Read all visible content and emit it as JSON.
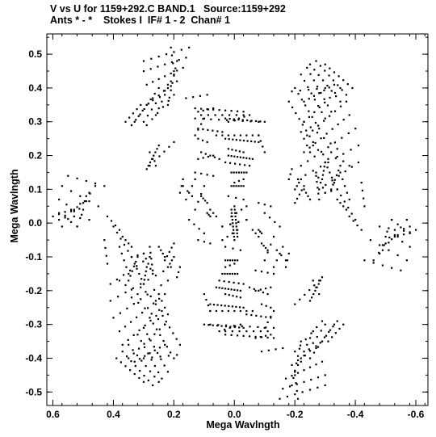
{
  "chart_data": {
    "type": "scatter",
    "title": "V vs U for 1159+292.C BAND.1   Source:1159+292",
    "subtitle": "Ants * - *    Stokes I  IF# 1 - 2  Chan# 1",
    "xlabel": "Mega Wavlngth",
    "ylabel": "Mega Wavlngth",
    "xlim": [
      0.62,
      -0.64
    ],
    "ylim": [
      -0.54,
      0.56
    ],
    "x_ticks": [
      0.6,
      0.4,
      0.2,
      0.0,
      -0.2,
      -0.4,
      -0.6
    ],
    "x_tick_labels": [
      "0.6",
      "0.4",
      "0.2",
      "0.0",
      "-0.2",
      "-0.4",
      "-0.6"
    ],
    "y_ticks": [
      0.5,
      0.4,
      0.3,
      0.2,
      0.1,
      0.0,
      -0.1,
      -0.2,
      -0.3,
      -0.4,
      -0.5
    ],
    "y_tick_labels": [
      "0.5",
      "0.4",
      "0.3",
      "0.2",
      "0.1",
      "0.0",
      "-0.1",
      "-0.2",
      "-0.3",
      "-0.4",
      "-0.5"
    ],
    "grid": false,
    "point_color": "#000000",
    "tracks": [
      {
        "u0": 0.29,
        "v0": 0.16,
        "u1": 0.25,
        "v1": 0.23,
        "n": 8
      },
      {
        "u0": 0.03,
        "v0": 0.31,
        "u1": -0.1,
        "v1": 0.3,
        "n": 10
      },
      {
        "u0": 0.03,
        "v0": 0.25,
        "u1": -0.08,
        "v1": 0.24,
        "n": 10
      },
      {
        "u0": 0.02,
        "v0": 0.2,
        "u1": -0.06,
        "v1": 0.19,
        "n": 9
      },
      {
        "u0": 0.01,
        "v0": 0.15,
        "u1": -0.04,
        "v1": 0.15,
        "n": 7
      },
      {
        "u0": 0.01,
        "v0": 0.11,
        "u1": -0.03,
        "v1": 0.11,
        "n": 6
      },
      {
        "u0": 0.15,
        "v0": 0.52,
        "u1": 0.3,
        "v1": 0.48,
        "n": 7
      },
      {
        "u0": 0.16,
        "v0": 0.49,
        "u1": 0.3,
        "v1": 0.45,
        "n": 7
      },
      {
        "u0": 0.17,
        "v0": 0.46,
        "u1": 0.29,
        "v1": 0.41,
        "n": 7
      },
      {
        "u0": 0.19,
        "v0": 0.42,
        "u1": 0.29,
        "v1": 0.35,
        "n": 6
      },
      {
        "u0": 0.2,
        "v0": 0.38,
        "u1": 0.29,
        "v1": 0.29,
        "n": 6
      },
      {
        "u0": 0.55,
        "v0": 0.14,
        "u1": 0.43,
        "v1": 0.11,
        "n": 5
      },
      {
        "u0": 0.57,
        "v0": 0.11,
        "u1": 0.45,
        "v1": 0.05,
        "n": 5
      },
      {
        "u0": 0.58,
        "v0": 0.07,
        "u1": 0.48,
        "v1": 0.01,
        "n": 5
      },
      {
        "u0": 0.58,
        "v0": 0.03,
        "u1": 0.52,
        "v1": -0.01,
        "n": 4
      },
      {
        "u0": 0.13,
        "v0": 0.34,
        "u1": -0.03,
        "v1": 0.33,
        "n": 9
      },
      {
        "u0": 0.12,
        "v0": 0.28,
        "u1": 0.04,
        "v1": 0.27,
        "n": 6
      },
      {
        "u0": 0.11,
        "v0": 0.21,
        "u1": 0.05,
        "v1": 0.19,
        "n": 5
      },
      {
        "u0": 0.16,
        "v0": 0.07,
        "u1": 0.13,
        "v1": 0.13,
        "n": 4
      },
      {
        "u0": 0.11,
        "v0": 0.08,
        "u1": 0.09,
        "v1": 0.06,
        "n": 4
      },
      {
        "u0": -0.3,
        "v0": 0.4,
        "u1": -0.19,
        "v1": 0.39,
        "n": 5
      },
      {
        "u0": -0.33,
        "v0": 0.41,
        "u1": -0.23,
        "v1": 0.36,
        "n": 7
      },
      {
        "u0": -0.35,
        "v0": 0.4,
        "u1": -0.23,
        "v1": 0.3,
        "n": 8
      },
      {
        "u0": -0.37,
        "v0": 0.36,
        "u1": -0.24,
        "v1": 0.26,
        "n": 8
      },
      {
        "u0": -0.38,
        "v0": 0.32,
        "u1": -0.23,
        "v1": 0.21,
        "n": 9
      },
      {
        "u0": -0.4,
        "v0": 0.28,
        "u1": -0.22,
        "v1": 0.17,
        "n": 9
      },
      {
        "u0": -0.41,
        "v0": 0.23,
        "u1": -0.21,
        "v1": 0.13,
        "n": 9
      },
      {
        "u0": -0.41,
        "v0": 0.18,
        "u1": -0.28,
        "v1": 0.1,
        "n": 7
      },
      {
        "u0": -0.38,
        "v0": 0.07,
        "u1": -0.35,
        "v1": 0.15,
        "n": 5
      },
      {
        "u0": -0.43,
        "v0": 0.05,
        "u1": -0.42,
        "v1": 0.12,
        "n": 4
      },
      {
        "u0": -0.32,
        "v0": 0.1,
        "u1": -0.35,
        "v1": 0.17,
        "n": 6
      },
      {
        "u0": -0.29,
        "v0": 0.13,
        "u1": -0.3,
        "v1": 0.18,
        "n": 5
      },
      {
        "u0": -0.2,
        "v0": 0.1,
        "u1": -0.22,
        "v1": 0.13,
        "n": 4
      },
      {
        "u0": -0.18,
        "v0": 0.13,
        "u1": -0.19,
        "v1": 0.16,
        "n": 3
      },
      {
        "u0": -0.3,
        "v0": 0.09,
        "u1": -0.34,
        "v1": 0.1,
        "n": 3
      },
      {
        "u0": 0.17,
        "v0": 0.11,
        "u1": 0.14,
        "v1": 0.08,
        "n": 3
      },
      {
        "u0": 0.26,
        "v0": 0.17,
        "u1": 0.28,
        "v1": 0.21,
        "n": 3
      },
      {
        "u0": -0.1,
        "v0": -0.11,
        "u1": -0.13,
        "v1": -0.04,
        "n": 4
      },
      {
        "u0": -0.18,
        "v0": -0.09,
        "u1": -0.17,
        "v1": -0.13,
        "n": 3
      },
      {
        "u0": -0.02,
        "v0": -0.08,
        "u1": 0.03,
        "v1": -0.07,
        "n": 3
      },
      {
        "u0": 0.2,
        "v0": -0.06,
        "u1": 0.23,
        "v1": -0.11,
        "n": 5
      },
      {
        "u0": 0.25,
        "v0": -0.07,
        "u1": 0.23,
        "v1": -0.1,
        "n": 4
      },
      {
        "u0": 0.28,
        "v0": -0.07,
        "u1": 0.27,
        "v1": -0.14,
        "n": 5
      },
      {
        "u0": 0.3,
        "v0": -0.09,
        "u1": 0.27,
        "v1": -0.15,
        "n": 5
      },
      {
        "u0": 0.33,
        "v0": -0.12,
        "u1": 0.3,
        "v1": -0.18,
        "n": 5
      },
      {
        "u0": 0.25,
        "v0": -0.21,
        "u1": 0.22,
        "v1": -0.27,
        "n": 4
      },
      {
        "u0": 0.31,
        "v0": -0.19,
        "u1": 0.26,
        "v1": -0.23,
        "n": 4
      },
      {
        "u0": 0.38,
        "v0": -0.17,
        "u1": 0.32,
        "v1": -0.21,
        "n": 4
      },
      {
        "u0": 0.37,
        "v0": -0.04,
        "u1": 0.34,
        "v1": -0.07,
        "n": 4
      },
      {
        "u0": 0.4,
        "v0": -0.01,
        "u1": 0.34,
        "v1": -0.1,
        "n": 6
      },
      {
        "u0": 0.42,
        "v0": 0.02,
        "u1": 0.38,
        "v1": -0.02,
        "n": 4
      },
      {
        "u0": 0.26,
        "v0": -0.24,
        "u1": 0.18,
        "v1": -0.36,
        "n": 8
      },
      {
        "u0": 0.28,
        "v0": -0.28,
        "u1": 0.2,
        "v1": -0.4,
        "n": 8
      },
      {
        "u0": 0.3,
        "v0": -0.31,
        "u1": 0.22,
        "v1": -0.44,
        "n": 8
      },
      {
        "u0": 0.32,
        "v0": -0.33,
        "u1": 0.24,
        "v1": -0.46,
        "n": 8
      },
      {
        "u0": 0.35,
        "v0": -0.36,
        "u1": 0.25,
        "v1": -0.47,
        "n": 8
      },
      {
        "u0": 0.37,
        "v0": -0.38,
        "u1": 0.27,
        "v1": -0.48,
        "n": 8
      },
      {
        "u0": 0.39,
        "v0": -0.4,
        "u1": 0.3,
        "v1": -0.47,
        "n": 7
      },
      {
        "u0": 0.34,
        "v0": -0.22,
        "u1": 0.23,
        "v1": -0.3,
        "n": 6
      },
      {
        "u0": 0.03,
        "v0": -0.21,
        "u1": -0.02,
        "v1": -0.22,
        "n": 5
      },
      {
        "u0": 0.05,
        "v0": -0.17,
        "u1": -0.03,
        "v1": -0.18,
        "n": 6
      },
      {
        "u0": 0.0,
        "v0": -0.12,
        "u1": 0.03,
        "v1": -0.13,
        "n": 3
      },
      {
        "u0": 0.04,
        "v0": -0.05,
        "u1": -0.01,
        "v1": -0.02,
        "n": 4
      },
      {
        "u0": -0.07,
        "v0": -0.2,
        "u1": -0.12,
        "v1": -0.19,
        "n": 4
      },
      {
        "u0": -0.07,
        "v0": -0.14,
        "u1": -0.13,
        "v1": -0.15,
        "n": 4
      },
      {
        "u0": -0.09,
        "v0": -0.24,
        "u1": -0.12,
        "v1": -0.25,
        "n": 3
      },
      {
        "u0": 0.1,
        "v0": -0.21,
        "u1": 0.08,
        "v1": -0.26,
        "n": 4
      },
      {
        "u0": 0.12,
        "v0": -0.05,
        "u1": 0.08,
        "v1": -0.06,
        "n": 3
      },
      {
        "u0": 0.15,
        "v0": 0.01,
        "u1": 0.1,
        "v1": -0.03,
        "n": 4
      },
      {
        "u0": -0.2,
        "v0": -0.24,
        "u1": -0.28,
        "v1": -0.17,
        "n": 6
      },
      {
        "u0": 0.08,
        "v0": -0.26,
        "u1": -0.06,
        "v1": -0.26,
        "n": 8
      },
      {
        "u0": 0.05,
        "v0": -0.32,
        "u1": -0.02,
        "v1": -0.3,
        "n": 5
      },
      {
        "u0": -0.1,
        "v0": -0.31,
        "u1": -0.13,
        "v1": -0.26,
        "n": 4
      },
      {
        "u0": 0.08,
        "v0": -0.3,
        "u1": -0.13,
        "v1": -0.31,
        "n": 9
      },
      {
        "u0": 0.03,
        "v0": -0.32,
        "u1": -0.11,
        "v1": -0.32,
        "n": 7
      },
      {
        "u0": -0.07,
        "v0": -0.34,
        "u1": -0.12,
        "v1": -0.33,
        "n": 4
      },
      {
        "u0": -0.09,
        "v0": -0.38,
        "u1": -0.16,
        "v1": -0.37,
        "n": 4
      },
      {
        "u0": -0.21,
        "v0": -0.52,
        "u1": -0.2,
        "v1": -0.45,
        "n": 4
      },
      {
        "u0": -0.19,
        "v0": -0.48,
        "u1": -0.22,
        "v1": -0.35,
        "n": 7
      },
      {
        "u0": -0.2,
        "v0": -0.44,
        "u1": -0.26,
        "v1": -0.32,
        "n": 7
      },
      {
        "u0": -0.22,
        "v0": -0.41,
        "u1": -0.3,
        "v1": -0.3,
        "n": 7
      },
      {
        "u0": -0.25,
        "v0": -0.4,
        "u1": -0.33,
        "v1": -0.3,
        "n": 7
      },
      {
        "u0": -0.27,
        "v0": -0.37,
        "u1": -0.34,
        "v1": -0.29,
        "n": 6
      },
      {
        "u0": -0.31,
        "v0": -0.35,
        "u1": -0.36,
        "v1": -0.3,
        "n": 5
      },
      {
        "u0": -0.48,
        "v0": -0.09,
        "u1": -0.52,
        "v1": 0.01,
        "n": 5
      },
      {
        "u0": -0.46,
        "v0": -0.11,
        "u1": -0.53,
        "v1": -0.02,
        "n": 5
      },
      {
        "u0": -0.49,
        "v0": -0.08,
        "u1": -0.57,
        "v1": 0.01,
        "n": 5
      },
      {
        "u0": -0.5,
        "v0": -0.06,
        "u1": -0.58,
        "v1": -0.01,
        "n": 5
      },
      {
        "u0": -0.54,
        "v0": -0.04,
        "u1": -0.6,
        "v1": -0.02,
        "n": 4
      },
      {
        "u0": 0.0,
        "v0": 0.05,
        "u1": -0.01,
        "v1": -0.04,
        "n": 10
      },
      {
        "u0": 0.06,
        "v0": 0.02,
        "u1": 0.08,
        "v1": 0.04,
        "n": 3
      },
      {
        "u0": -0.08,
        "v0": -0.02,
        "u1": -0.09,
        "v1": -0.03,
        "n": 3
      },
      {
        "u0": 0.04,
        "v0": -0.01,
        "u1": -0.04,
        "v1": 0.01,
        "n": 4
      }
    ]
  }
}
